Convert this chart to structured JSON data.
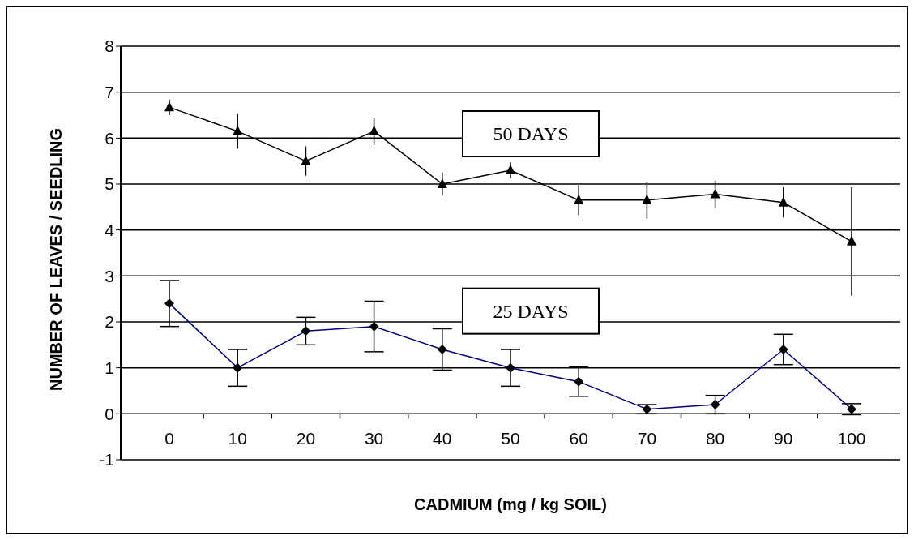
{
  "chart_data": {
    "type": "line",
    "xlabel": "CADMIUM (mg / kg SOIL)",
    "ylabel": "NUMBER OF LEAVES / SEEDLING",
    "categories": [
      "0",
      "10",
      "20",
      "30",
      "40",
      "50",
      "60",
      "70",
      "80",
      "90",
      "100"
    ],
    "series": [
      {
        "name": "50 DAYS",
        "color": "#000000",
        "marker": "triangle",
        "values": [
          6.67,
          6.15,
          5.5,
          6.15,
          5.0,
          5.3,
          4.65,
          4.65,
          4.78,
          4.6,
          3.75
        ],
        "errors": [
          0.17,
          0.38,
          0.32,
          0.3,
          0.25,
          0.17,
          0.33,
          0.4,
          0.3,
          0.33,
          1.18
        ]
      },
      {
        "name": "25 DAYS",
        "color": "#000080",
        "marker": "diamond",
        "values": [
          2.4,
          1.0,
          1.8,
          1.9,
          1.4,
          1.0,
          0.7,
          0.1,
          0.2,
          1.4,
          0.1
        ],
        "errors": [
          0.5,
          0.4,
          0.3,
          0.55,
          0.45,
          0.4,
          0.32,
          0.1,
          0.2,
          0.33,
          0.12
        ]
      }
    ],
    "ylim": [
      -1,
      8
    ],
    "yticks": [
      -1,
      0,
      1,
      2,
      3,
      4,
      5,
      6,
      7,
      8
    ],
    "grid": "y",
    "legend": false,
    "line_style": "solid"
  }
}
